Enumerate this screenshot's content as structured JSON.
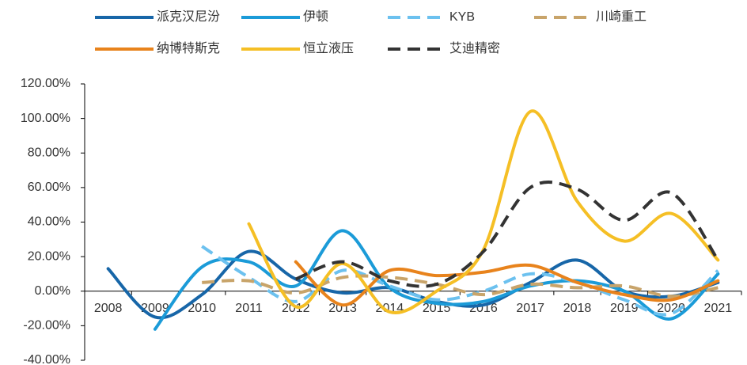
{
  "chart_data": {
    "type": "line",
    "categories": [
      "2008",
      "2009",
      "2010",
      "2011",
      "2012",
      "2013",
      "2014",
      "2015",
      "2016",
      "2017",
      "2018",
      "2019",
      "2020",
      "2021"
    ],
    "series": [
      {
        "name": "派克汉尼汾",
        "color": "#1766a8",
        "dashed": false,
        "values": [
          13,
          -15,
          -2,
          23,
          7,
          -1,
          2,
          -6,
          -8,
          5,
          18,
          0,
          -3,
          5
        ]
      },
      {
        "name": "伊顿",
        "color": "#1b9bd8",
        "dashed": false,
        "values": [
          null,
          -22,
          14,
          17,
          3,
          35,
          2,
          -7,
          -6,
          3,
          6,
          0,
          -16,
          10
        ]
      },
      {
        "name": "KYB",
        "color": "#6cc1ef",
        "dashed": true,
        "values": [
          null,
          null,
          26,
          8,
          -6,
          12,
          3,
          -5,
          0,
          10,
          5,
          -5,
          -13,
          12
        ]
      },
      {
        "name": "川崎重工",
        "color": "#c8a46a",
        "dashed": true,
        "values": [
          null,
          null,
          5,
          6,
          -1,
          8,
          8,
          4,
          -2,
          4,
          2,
          3,
          -3,
          2
        ]
      },
      {
        "name": "纳博特斯克",
        "color": "#e8831c",
        "dashed": false,
        "values": [
          null,
          null,
          null,
          null,
          17,
          -8,
          12,
          9,
          11,
          15,
          5,
          -2,
          -5,
          6
        ]
      },
      {
        "name": "恒立液压",
        "color": "#f5bf25",
        "dashed": false,
        "values": [
          null,
          null,
          null,
          39,
          -9,
          16,
          -12,
          0,
          24,
          104,
          52,
          29,
          45,
          18
        ]
      },
      {
        "name": "艾迪精密",
        "color": "#333333",
        "dashed": true,
        "values": [
          null,
          null,
          null,
          null,
          7,
          17,
          6,
          4,
          23,
          60,
          59,
          41,
          57,
          18
        ]
      }
    ],
    "ylim": [
      -40,
      120
    ],
    "yticks": [
      {
        "value": -40,
        "label": "-40.00%"
      },
      {
        "value": -20,
        "label": "-20.00%"
      },
      {
        "value": 0,
        "label": "0.00%"
      },
      {
        "value": 20,
        "label": "20.00%"
      },
      {
        "value": 40,
        "label": "40.00%"
      },
      {
        "value": 60,
        "label": "60.00%"
      },
      {
        "value": 80,
        "label": "80.00%"
      },
      {
        "value": 100,
        "label": "100.00%"
      },
      {
        "value": 120,
        "label": "120.00%"
      }
    ],
    "smooth": true,
    "legend": "top"
  }
}
